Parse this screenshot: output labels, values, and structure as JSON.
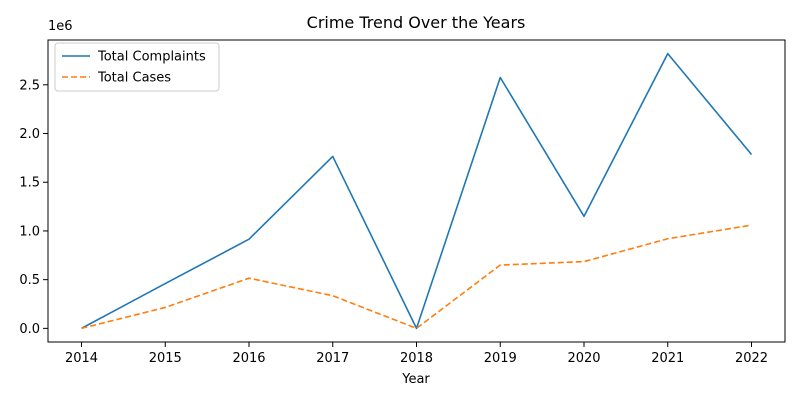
{
  "chart_data": {
    "type": "line",
    "title": "Crime Trend Over the Years",
    "xlabel": "Year",
    "ylabel": "",
    "y_scale_label": "1e6",
    "x": [
      2014,
      2015,
      2016,
      2017,
      2018,
      2019,
      2020,
      2021,
      2022
    ],
    "x_ticks": [
      "2014",
      "2015",
      "2016",
      "2017",
      "2018",
      "2019",
      "2020",
      "2021",
      "2022"
    ],
    "y_ticks": [
      "0.0",
      "0.5",
      "1.0",
      "1.5",
      "2.0",
      "2.5"
    ],
    "y_tick_values": [
      0,
      500000,
      1000000,
      1500000,
      2000000,
      2500000
    ],
    "xlim": [
      2013.6,
      2022.4
    ],
    "ylim": [
      -140000,
      2960000
    ],
    "grid": false,
    "legend_position": "top-left",
    "series": [
      {
        "name": "Total Complaints",
        "values": [
          0,
          460000,
          915000,
          1765000,
          0,
          2575000,
          1150000,
          2820000,
          1785000
        ],
        "color": "#1f77b4",
        "style": "solid"
      },
      {
        "name": "Total Cases",
        "values": [
          0,
          215000,
          515000,
          335000,
          0,
          650000,
          685000,
          920000,
          1060000
        ],
        "color": "#ff7f0e",
        "style": "dashed"
      }
    ]
  }
}
